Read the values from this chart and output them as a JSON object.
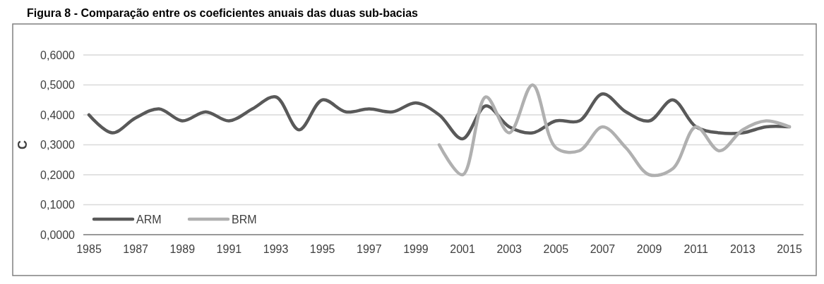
{
  "chart_data": {
    "type": "line",
    "title": "Figura 8 - Comparação entre os coeficientes anuais das duas sub-bacias",
    "ylabel": "C",
    "categories": [
      "1985",
      null,
      "1987",
      null,
      "1989",
      null,
      "1991",
      null,
      "1993",
      null,
      "1995",
      null,
      "1997",
      null,
      "1999",
      null,
      "2001",
      null,
      "2003",
      null,
      "2005",
      null,
      "2007",
      null,
      "2009",
      null,
      "2011",
      null,
      "2013",
      null,
      "2015"
    ],
    "series": [
      {
        "name": "ARM",
        "color": "#595959",
        "values": [
          0.4,
          0.34,
          0.39,
          0.42,
          0.38,
          0.41,
          0.38,
          0.42,
          0.46,
          0.35,
          0.45,
          0.41,
          0.42,
          0.41,
          0.44,
          0.4,
          0.32,
          0.43,
          0.36,
          0.34,
          0.38,
          0.38,
          0.47,
          0.41,
          0.38,
          0.45,
          0.36,
          0.34,
          0.34,
          0.36,
          0.36
        ]
      },
      {
        "name": "BRM",
        "color": "#b0b0b0",
        "values": [
          null,
          null,
          null,
          null,
          null,
          null,
          null,
          null,
          null,
          null,
          null,
          null,
          null,
          null,
          null,
          0.3,
          0.2,
          0.46,
          0.34,
          0.5,
          0.29,
          0.28,
          0.36,
          0.29,
          0.2,
          0.22,
          0.36,
          0.28,
          0.35,
          0.38,
          0.36
        ]
      }
    ],
    "ylim": [
      0,
      0.6
    ],
    "yticks": [
      {
        "value": 0,
        "label": "0,0000"
      },
      {
        "value": 0.1,
        "label": "0,1000"
      },
      {
        "value": 0.2,
        "label": "0,2000"
      },
      {
        "value": 0.3,
        "label": "0,3000"
      },
      {
        "value": 0.4,
        "label": "0,4000"
      },
      {
        "value": 0.5,
        "label": "0,5000"
      },
      {
        "value": 0.6,
        "label": "0,6000"
      }
    ],
    "grid": "y",
    "legend": "bottom left",
    "marker": "none",
    "line_style": "solid"
  }
}
